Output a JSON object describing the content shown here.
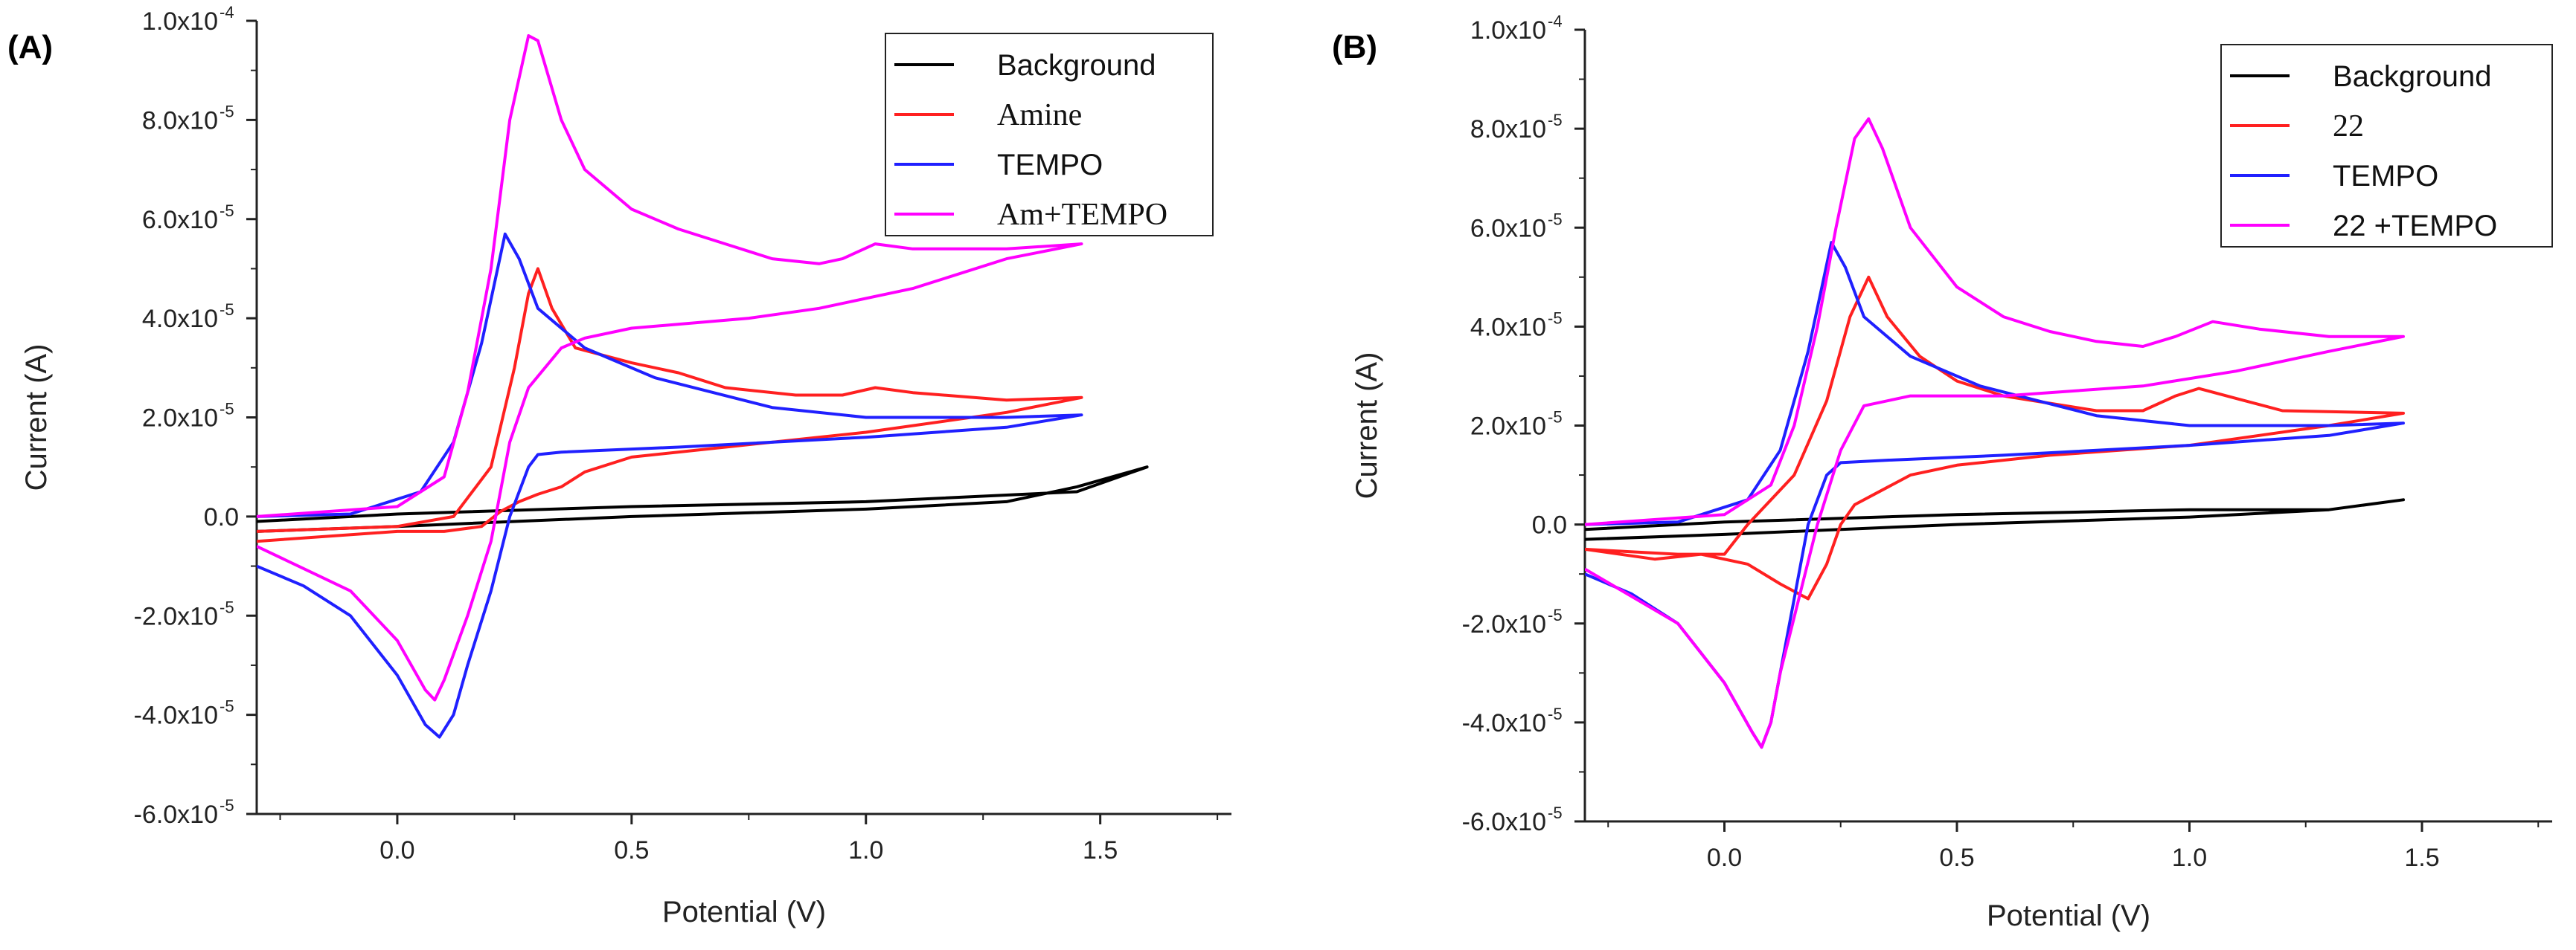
{
  "figure": {
    "panels": [
      {
        "id": "A",
        "label": "(A)"
      },
      {
        "id": "B",
        "label": "(B)"
      }
    ]
  },
  "chart_data": [
    {
      "type": "line",
      "panel": "(A)",
      "xlabel": "Potential (V)",
      "ylabel": "Current (A)",
      "xlim": [
        -0.3,
        1.78
      ],
      "ylim": [
        -6e-05,
        0.0001
      ],
      "x_ticks": [
        0.0,
        0.5,
        1.0,
        1.5
      ],
      "x_tick_labels": [
        "0.0",
        "0.5",
        "1.0",
        "1.5"
      ],
      "y_ticks": [
        {
          "value": 0.0001,
          "mant": "1.0x10",
          "exp": "-4"
        },
        {
          "value": 8e-05,
          "mant": "8.0x10",
          "exp": "-5"
        },
        {
          "value": 6e-05,
          "mant": "6.0x10",
          "exp": "-5"
        },
        {
          "value": 4e-05,
          "mant": "4.0x10",
          "exp": "-5"
        },
        {
          "value": 2e-05,
          "mant": "2.0x10",
          "exp": "-5"
        },
        {
          "value": 0.0,
          "mant": "0.0",
          "exp": ""
        },
        {
          "value": -2e-05,
          "mant": "-2.0x10",
          "exp": "-5"
        },
        {
          "value": -4e-05,
          "mant": "-4.0x10",
          "exp": "-5"
        },
        {
          "value": -6e-05,
          "mant": "-6.0x10",
          "exp": "-5"
        }
      ],
      "legend_position": "top-right",
      "series": [
        {
          "name": "Background",
          "color": "#000000",
          "label_font": "sans",
          "points": [
            [
              -0.3,
              -0.3
            ],
            [
              0.0,
              -0.2
            ],
            [
              0.5,
              0.0
            ],
            [
              1.0,
              0.15
            ],
            [
              1.3,
              0.3
            ],
            [
              1.45,
              0.6
            ],
            [
              1.6,
              1.0
            ],
            [
              1.45,
              0.5
            ],
            [
              1.0,
              0.3
            ],
            [
              0.5,
              0.2
            ],
            [
              0.0,
              0.05
            ],
            [
              -0.3,
              -0.1
            ]
          ]
        },
        {
          "name": "Amine",
          "color": "#ff2020",
          "label_font": "serif",
          "points": [
            [
              -0.3,
              -0.3
            ],
            [
              0.0,
              -0.2
            ],
            [
              0.12,
              0.0
            ],
            [
              0.2,
              1.0
            ],
            [
              0.25,
              3.0
            ],
            [
              0.28,
              4.5
            ],
            [
              0.3,
              5.0
            ],
            [
              0.33,
              4.2
            ],
            [
              0.38,
              3.4
            ],
            [
              0.5,
              3.1
            ],
            [
              0.6,
              2.9
            ],
            [
              0.7,
              2.6
            ],
            [
              0.85,
              2.45
            ],
            [
              0.95,
              2.45
            ],
            [
              1.02,
              2.6
            ],
            [
              1.1,
              2.5
            ],
            [
              1.3,
              2.35
            ],
            [
              1.46,
              2.4
            ],
            [
              1.3,
              2.1
            ],
            [
              1.0,
              1.7
            ],
            [
              0.7,
              1.4
            ],
            [
              0.5,
              1.2
            ],
            [
              0.4,
              0.9
            ],
            [
              0.35,
              0.6
            ],
            [
              0.3,
              0.45
            ],
            [
              0.26,
              0.3
            ],
            [
              0.22,
              0.1
            ],
            [
              0.18,
              -0.2
            ],
            [
              0.1,
              -0.3
            ],
            [
              0.0,
              -0.3
            ],
            [
              -0.3,
              -0.5
            ]
          ]
        },
        {
          "name": "TEMPO",
          "color": "#2020ff",
          "label_font": "sans",
          "points": [
            [
              -0.3,
              0.0
            ],
            [
              -0.1,
              0.05
            ],
            [
              0.05,
              0.5
            ],
            [
              0.12,
              1.5
            ],
            [
              0.18,
              3.5
            ],
            [
              0.23,
              5.7
            ],
            [
              0.26,
              5.2
            ],
            [
              0.3,
              4.2
            ],
            [
              0.4,
              3.4
            ],
            [
              0.55,
              2.8
            ],
            [
              0.8,
              2.2
            ],
            [
              1.0,
              2.0
            ],
            [
              1.3,
              2.0
            ],
            [
              1.46,
              2.05
            ],
            [
              1.3,
              1.8
            ],
            [
              1.0,
              1.6
            ],
            [
              0.6,
              1.4
            ],
            [
              0.35,
              1.3
            ],
            [
              0.3,
              1.25
            ],
            [
              0.28,
              1.0
            ],
            [
              0.24,
              0.0
            ],
            [
              0.2,
              -1.5
            ],
            [
              0.15,
              -3.0
            ],
            [
              0.12,
              -4.0
            ],
            [
              0.09,
              -4.45
            ],
            [
              0.06,
              -4.2
            ],
            [
              0.0,
              -3.2
            ],
            [
              -0.1,
              -2.0
            ],
            [
              -0.2,
              -1.4
            ],
            [
              -0.3,
              -1.0
            ]
          ]
        },
        {
          "name": "Am+TEMPO",
          "color": "#ff00ff",
          "label_font": "serif",
          "points": [
            [
              -0.3,
              0.0
            ],
            [
              0.0,
              0.2
            ],
            [
              0.1,
              0.8
            ],
            [
              0.15,
              2.5
            ],
            [
              0.2,
              5.0
            ],
            [
              0.24,
              8.0
            ],
            [
              0.28,
              9.7
            ],
            [
              0.3,
              9.6
            ],
            [
              0.35,
              8.0
            ],
            [
              0.4,
              7.0
            ],
            [
              0.5,
              6.2
            ],
            [
              0.6,
              5.8
            ],
            [
              0.7,
              5.5
            ],
            [
              0.8,
              5.2
            ],
            [
              0.9,
              5.1
            ],
            [
              0.95,
              5.2
            ],
            [
              1.02,
              5.5
            ],
            [
              1.1,
              5.4
            ],
            [
              1.3,
              5.4
            ],
            [
              1.46,
              5.5
            ],
            [
              1.3,
              5.2
            ],
            [
              1.1,
              4.6
            ],
            [
              0.9,
              4.2
            ],
            [
              0.75,
              4.0
            ],
            [
              0.5,
              3.8
            ],
            [
              0.4,
              3.6
            ],
            [
              0.35,
              3.4
            ],
            [
              0.28,
              2.6
            ],
            [
              0.24,
              1.5
            ],
            [
              0.2,
              -0.5
            ],
            [
              0.15,
              -2.0
            ],
            [
              0.1,
              -3.3
            ],
            [
              0.08,
              -3.7
            ],
            [
              0.06,
              -3.5
            ],
            [
              0.0,
              -2.5
            ],
            [
              -0.1,
              -1.5
            ],
            [
              -0.3,
              -0.6
            ]
          ]
        }
      ]
    },
    {
      "type": "line",
      "panel": "(B)",
      "xlabel": "Potential (V)",
      "ylabel": "Current (A)",
      "xlim": [
        -0.3,
        1.78
      ],
      "ylim": [
        -6e-05,
        0.0001
      ],
      "x_ticks": [
        0.0,
        0.5,
        1.0,
        1.5
      ],
      "x_tick_labels": [
        "0.0",
        "0.5",
        "1.0",
        "1.5"
      ],
      "y_ticks": [
        {
          "value": 0.0001,
          "mant": "1.0x10",
          "exp": "-4"
        },
        {
          "value": 8e-05,
          "mant": "8.0x10",
          "exp": "-5"
        },
        {
          "value": 6e-05,
          "mant": "6.0x10",
          "exp": "-5"
        },
        {
          "value": 4e-05,
          "mant": "4.0x10",
          "exp": "-5"
        },
        {
          "value": 2e-05,
          "mant": "2.0x10",
          "exp": "-5"
        },
        {
          "value": 0.0,
          "mant": "0.0",
          "exp": ""
        },
        {
          "value": -2e-05,
          "mant": "-2.0x10",
          "exp": "-5"
        },
        {
          "value": -4e-05,
          "mant": "-4.0x10",
          "exp": "-5"
        },
        {
          "value": -6e-05,
          "mant": "-6.0x10",
          "exp": "-5"
        }
      ],
      "legend_position": "top-right",
      "series": [
        {
          "name": "Background",
          "color": "#000000",
          "label_font": "sans",
          "points": [
            [
              -0.3,
              -0.3
            ],
            [
              0.0,
              -0.2
            ],
            [
              0.5,
              0.0
            ],
            [
              1.0,
              0.15
            ],
            [
              1.3,
              0.3
            ],
            [
              1.46,
              0.5
            ],
            [
              1.3,
              0.3
            ],
            [
              1.0,
              0.3
            ],
            [
              0.5,
              0.2
            ],
            [
              0.0,
              0.05
            ],
            [
              -0.3,
              -0.1
            ]
          ]
        },
        {
          "name": "22",
          "color": "#ff2020",
          "label_font": "serif",
          "points": [
            [
              -0.3,
              -0.5
            ],
            [
              -0.1,
              -0.6
            ],
            [
              0.0,
              -0.6
            ],
            [
              0.05,
              0.0
            ],
            [
              0.15,
              1.0
            ],
            [
              0.22,
              2.5
            ],
            [
              0.27,
              4.2
            ],
            [
              0.31,
              5.0
            ],
            [
              0.35,
              4.2
            ],
            [
              0.42,
              3.4
            ],
            [
              0.5,
              2.9
            ],
            [
              0.6,
              2.6
            ],
            [
              0.8,
              2.3
            ],
            [
              0.9,
              2.3
            ],
            [
              0.97,
              2.6
            ],
            [
              1.02,
              2.75
            ],
            [
              1.1,
              2.55
            ],
            [
              1.2,
              2.3
            ],
            [
              1.46,
              2.25
            ],
            [
              1.3,
              2.0
            ],
            [
              1.0,
              1.6
            ],
            [
              0.7,
              1.4
            ],
            [
              0.5,
              1.2
            ],
            [
              0.4,
              1.0
            ],
            [
              0.32,
              0.6
            ],
            [
              0.28,
              0.4
            ],
            [
              0.25,
              0.0
            ],
            [
              0.22,
              -0.8
            ],
            [
              0.18,
              -1.5
            ],
            [
              0.12,
              -1.2
            ],
            [
              0.05,
              -0.8
            ],
            [
              -0.05,
              -0.6
            ],
            [
              -0.15,
              -0.7
            ],
            [
              -0.3,
              -0.5
            ]
          ]
        },
        {
          "name": "TEMPO",
          "color": "#2020ff",
          "label_font": "sans",
          "points": [
            [
              -0.3,
              0.0
            ],
            [
              -0.1,
              0.05
            ],
            [
              0.05,
              0.5
            ],
            [
              0.12,
              1.5
            ],
            [
              0.18,
              3.5
            ],
            [
              0.23,
              5.7
            ],
            [
              0.26,
              5.2
            ],
            [
              0.3,
              4.2
            ],
            [
              0.4,
              3.4
            ],
            [
              0.55,
              2.8
            ],
            [
              0.8,
              2.2
            ],
            [
              1.0,
              2.0
            ],
            [
              1.3,
              2.0
            ],
            [
              1.46,
              2.05
            ],
            [
              1.3,
              1.8
            ],
            [
              1.0,
              1.6
            ],
            [
              0.6,
              1.4
            ],
            [
              0.35,
              1.3
            ],
            [
              0.25,
              1.25
            ],
            [
              0.22,
              1.0
            ],
            [
              0.18,
              0.0
            ],
            [
              0.15,
              -1.5
            ],
            [
              0.12,
              -3.0
            ],
            [
              0.1,
              -4.0
            ],
            [
              0.08,
              -4.5
            ],
            [
              0.06,
              -4.2
            ],
            [
              0.0,
              -3.2
            ],
            [
              -0.1,
              -2.0
            ],
            [
              -0.2,
              -1.4
            ],
            [
              -0.3,
              -1.0
            ]
          ]
        },
        {
          "name": "22 +TEMPO",
          "color": "#ff00ff",
          "label_font": "sans",
          "points": [
            [
              -0.3,
              0.0
            ],
            [
              0.0,
              0.2
            ],
            [
              0.1,
              0.8
            ],
            [
              0.15,
              2.0
            ],
            [
              0.2,
              4.0
            ],
            [
              0.24,
              6.0
            ],
            [
              0.28,
              7.8
            ],
            [
              0.31,
              8.2
            ],
            [
              0.34,
              7.6
            ],
            [
              0.4,
              6.0
            ],
            [
              0.5,
              4.8
            ],
            [
              0.6,
              4.2
            ],
            [
              0.7,
              3.9
            ],
            [
              0.8,
              3.7
            ],
            [
              0.9,
              3.6
            ],
            [
              0.97,
              3.8
            ],
            [
              1.05,
              4.1
            ],
            [
              1.15,
              3.95
            ],
            [
              1.3,
              3.8
            ],
            [
              1.46,
              3.8
            ],
            [
              1.3,
              3.5
            ],
            [
              1.1,
              3.1
            ],
            [
              0.9,
              2.8
            ],
            [
              0.6,
              2.6
            ],
            [
              0.4,
              2.6
            ],
            [
              0.3,
              2.4
            ],
            [
              0.25,
              1.5
            ],
            [
              0.2,
              0.0
            ],
            [
              0.16,
              -1.5
            ],
            [
              0.12,
              -3.0
            ],
            [
              0.1,
              -4.0
            ],
            [
              0.08,
              -4.5
            ],
            [
              0.06,
              -4.2
            ],
            [
              0.0,
              -3.2
            ],
            [
              -0.1,
              -2.0
            ],
            [
              -0.3,
              -0.9
            ]
          ]
        }
      ]
    }
  ]
}
